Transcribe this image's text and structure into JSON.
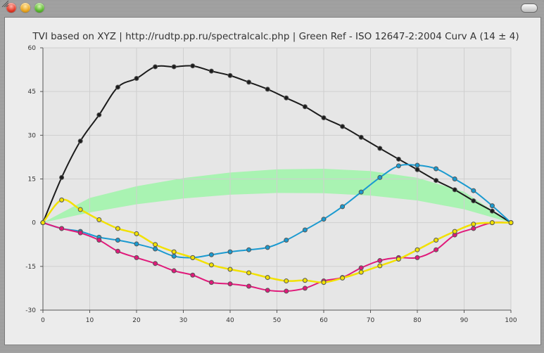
{
  "window": {
    "buttons": [
      "close-button",
      "minimize-button",
      "zoom-button"
    ]
  },
  "chart_data": {
    "type": "line",
    "title": "TVI based on XYZ | http://rudtp.pp.ru/spectralcalc.php | Green Ref - ISO 12647-2:2004 Curv A (14 ± 4)",
    "xlabel": "",
    "ylabel": "",
    "xlim": [
      0,
      100
    ],
    "ylim": [
      -30,
      60
    ],
    "xticks": [
      0,
      10,
      20,
      30,
      40,
      50,
      60,
      70,
      80,
      90,
      100
    ],
    "yticks": [
      -30,
      -15,
      0,
      15,
      30,
      45,
      60
    ],
    "grid": true,
    "legend": "none",
    "reference_band": {
      "color": "#9ef5a8",
      "x": [
        0,
        10,
        20,
        30,
        40,
        50,
        60,
        70,
        80,
        90,
        100
      ],
      "lower": [
        0,
        3.5,
        6.3,
        8.3,
        9.6,
        10.2,
        10.1,
        9.3,
        7.6,
        4.6,
        0
      ],
      "upper": [
        0,
        8.5,
        12.5,
        15.3,
        17.2,
        18.3,
        18.5,
        17.7,
        15.4,
        10.6,
        0
      ]
    },
    "series": [
      {
        "color": "#1c1c1c",
        "x": [
          0,
          4,
          8,
          12,
          16,
          20,
          24,
          28,
          32,
          36,
          40,
          44,
          48,
          52,
          56,
          60,
          64,
          68,
          72,
          76,
          80,
          84,
          88,
          92,
          96,
          100
        ],
        "y": [
          0,
          15.5,
          28,
          37,
          46.5,
          49.5,
          53.5,
          53.5,
          53.8,
          52,
          50.5,
          48.2,
          45.8,
          42.8,
          39.8,
          36,
          33,
          29.3,
          25.5,
          21.8,
          18.2,
          14.5,
          11.3,
          7.5,
          4,
          0
        ]
      },
      {
        "color": "#1a9ad0",
        "x": [
          0,
          4,
          8,
          12,
          16,
          20,
          24,
          28,
          32,
          36,
          40,
          44,
          48,
          52,
          56,
          60,
          64,
          68,
          72,
          76,
          80,
          84,
          88,
          92,
          96,
          100
        ],
        "y": [
          0,
          -2,
          -3,
          -5,
          -6,
          -7.3,
          -9,
          -11.5,
          -12,
          -11,
          -10,
          -9.3,
          -8.5,
          -6,
          -2.5,
          1.2,
          5.5,
          10.5,
          15.5,
          19.5,
          19.7,
          18.5,
          15,
          11,
          5.8,
          0
        ]
      },
      {
        "color": "#e0197a",
        "x": [
          0,
          4,
          8,
          12,
          16,
          20,
          24,
          28,
          32,
          36,
          40,
          44,
          48,
          52,
          56,
          60,
          64,
          68,
          72,
          76,
          80,
          84,
          88,
          92,
          96,
          100
        ],
        "y": [
          0,
          -2,
          -3.5,
          -6,
          -9.8,
          -12,
          -14,
          -16.5,
          -18,
          -20.5,
          -21,
          -21.8,
          -23.2,
          -23.5,
          -22.5,
          -20,
          -18.8,
          -15.5,
          -13,
          -12,
          -12,
          -9.3,
          -4.2,
          -2,
          0,
          0
        ]
      },
      {
        "color": "#f2e100",
        "x": [
          0,
          4,
          8,
          12,
          16,
          20,
          24,
          28,
          32,
          36,
          40,
          44,
          48,
          52,
          56,
          60,
          64,
          68,
          72,
          76,
          80,
          84,
          88,
          92,
          96,
          100
        ],
        "y": [
          0,
          7.8,
          4.5,
          1,
          -2,
          -3.8,
          -7.5,
          -10,
          -12,
          -14.5,
          -16,
          -17.2,
          -18.8,
          -20,
          -19.8,
          -20.5,
          -19,
          -17,
          -14.8,
          -12.5,
          -9.3,
          -6,
          -3,
          -0.5,
          0,
          0
        ]
      }
    ]
  }
}
